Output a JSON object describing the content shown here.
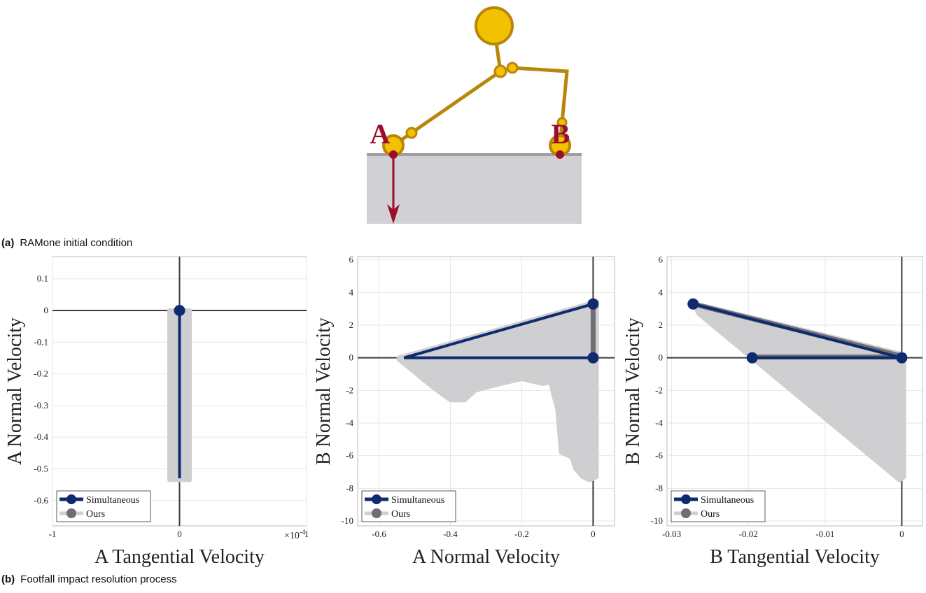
{
  "diagram": {
    "labels": [
      "A",
      "B"
    ]
  },
  "captions": [
    {
      "tag": "(a)",
      "text": "RAMone initial condition"
    },
    {
      "tag": "(b)",
      "text": "Footfall impact resolution process"
    }
  ],
  "chart_data": [
    {
      "type": "line",
      "xlabel": "A Tangential Velocity",
      "ylabel": "A Normal Velocity",
      "x_multiplier": "×10",
      "x_multiplier_exp": "-4",
      "xlim": [
        -0.0001,
        0.0001
      ],
      "xticks": [
        {
          "value": -0.0001,
          "label": "-1"
        },
        0,
        {
          "value": 0.0001,
          "label": "1"
        }
      ],
      "ylim": [
        -0.68,
        0.17
      ],
      "yticks": [
        0.1,
        0,
        -0.1,
        -0.2,
        -0.3,
        -0.4,
        -0.5,
        -0.6
      ],
      "grid": true,
      "legend": "lower left",
      "series": [
        {
          "name": "Simultaneous",
          "color": "#0f2a6e",
          "x": [
            0,
            0
          ],
          "y": [
            0,
            -0.53
          ],
          "marker_x": [
            0
          ],
          "marker_y": [
            0
          ]
        },
        {
          "name": "Ours",
          "style": "area",
          "color": "#cfcfd1",
          "x": [
            -8e-06,
            8e-06,
            8e-06,
            -8e-06
          ],
          "y": [
            0,
            0,
            -0.535,
            -0.535
          ],
          "path_color": "#6e6e73",
          "path_x": [],
          "path_y": []
        }
      ]
    },
    {
      "type": "line",
      "xlabel": "A Normal Velocity",
      "ylabel": "B Normal Velocity",
      "xlim": [
        -0.66,
        0.06
      ],
      "xticks": [
        -0.6,
        -0.4,
        -0.2,
        0
      ],
      "ylim": [
        -10.3,
        6.2
      ],
      "yticks": [
        6,
        4,
        2,
        0,
        -2,
        -4,
        -6,
        -8,
        -10
      ],
      "grid": true,
      "legend": "lower left",
      "series": [
        {
          "name": "Simultaneous",
          "color": "#0f2a6e",
          "x": [
            0,
            -0.53,
            0
          ],
          "y": [
            3.3,
            0,
            0
          ],
          "marker_x": [
            0,
            0
          ],
          "marker_y": [
            3.3,
            0
          ]
        },
        {
          "name": "Ours",
          "style": "area",
          "color": "#cfcfd1",
          "x": [
            -0.545,
            0.01,
            0.01,
            -0.01,
            -0.03,
            -0.05,
            -0.06,
            -0.09,
            -0.1,
            -0.12,
            -0.14,
            -0.2,
            -0.26,
            -0.33,
            -0.36,
            -0.4,
            -0.45,
            -0.545
          ],
          "y": [
            0,
            3.45,
            -7.3,
            -7.5,
            -7.3,
            -6.8,
            -6.1,
            -5.8,
            -3.2,
            -1.5,
            -1.6,
            -1.3,
            -1.6,
            -2.0,
            -2.6,
            -2.6,
            -1.8,
            -0.1
          ],
          "path_color": "#6e6e73",
          "path_x": [
            0,
            0
          ],
          "path_y": [
            0,
            3.3
          ]
        }
      ]
    },
    {
      "type": "line",
      "xlabel": "B Tangential Velocity",
      "ylabel": "B Normal Velocity",
      "xlim": [
        -0.0306,
        0.0027
      ],
      "xticks": [
        -0.03,
        -0.02,
        -0.01,
        0
      ],
      "ylim": [
        -10.3,
        6.2
      ],
      "yticks": [
        6,
        4,
        2,
        0,
        -2,
        -4,
        -6,
        -8,
        -10
      ],
      "grid": true,
      "legend": "lower left",
      "series": [
        {
          "name": "Simultaneous",
          "color": "#0f2a6e",
          "x": [
            -0.0272,
            0,
            -0.0195
          ],
          "y": [
            3.3,
            0,
            0
          ],
          "marker_x": [
            -0.0272,
            0,
            -0.0195
          ],
          "marker_y": [
            3.3,
            0,
            0
          ]
        },
        {
          "name": "Ours",
          "style": "area",
          "color": "#cfcfd1",
          "x": [
            -0.0272,
            0.0003,
            0.0003,
            -0.0003,
            -0.0265
          ],
          "y": [
            3.35,
            0.2,
            -7.3,
            -7.5,
            2.7
          ],
          "path_color": "#6e6e73",
          "path_x": [
            -0.0272,
            0,
            null,
            -0.0195,
            0
          ],
          "path_y": [
            3.3,
            0.1,
            null,
            0.05,
            0.05
          ]
        }
      ]
    }
  ]
}
